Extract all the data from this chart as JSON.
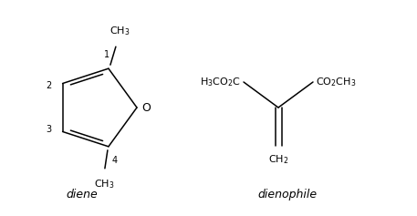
{
  "bg_color": "#ffffff",
  "fig_width": 4.57,
  "fig_height": 2.37,
  "dpi": 100,
  "diene_label": "diene",
  "dienophile_label": "dienophile",
  "lw": 1.1,
  "font_size_label": 9,
  "font_size_atom": 8,
  "font_size_number": 7
}
